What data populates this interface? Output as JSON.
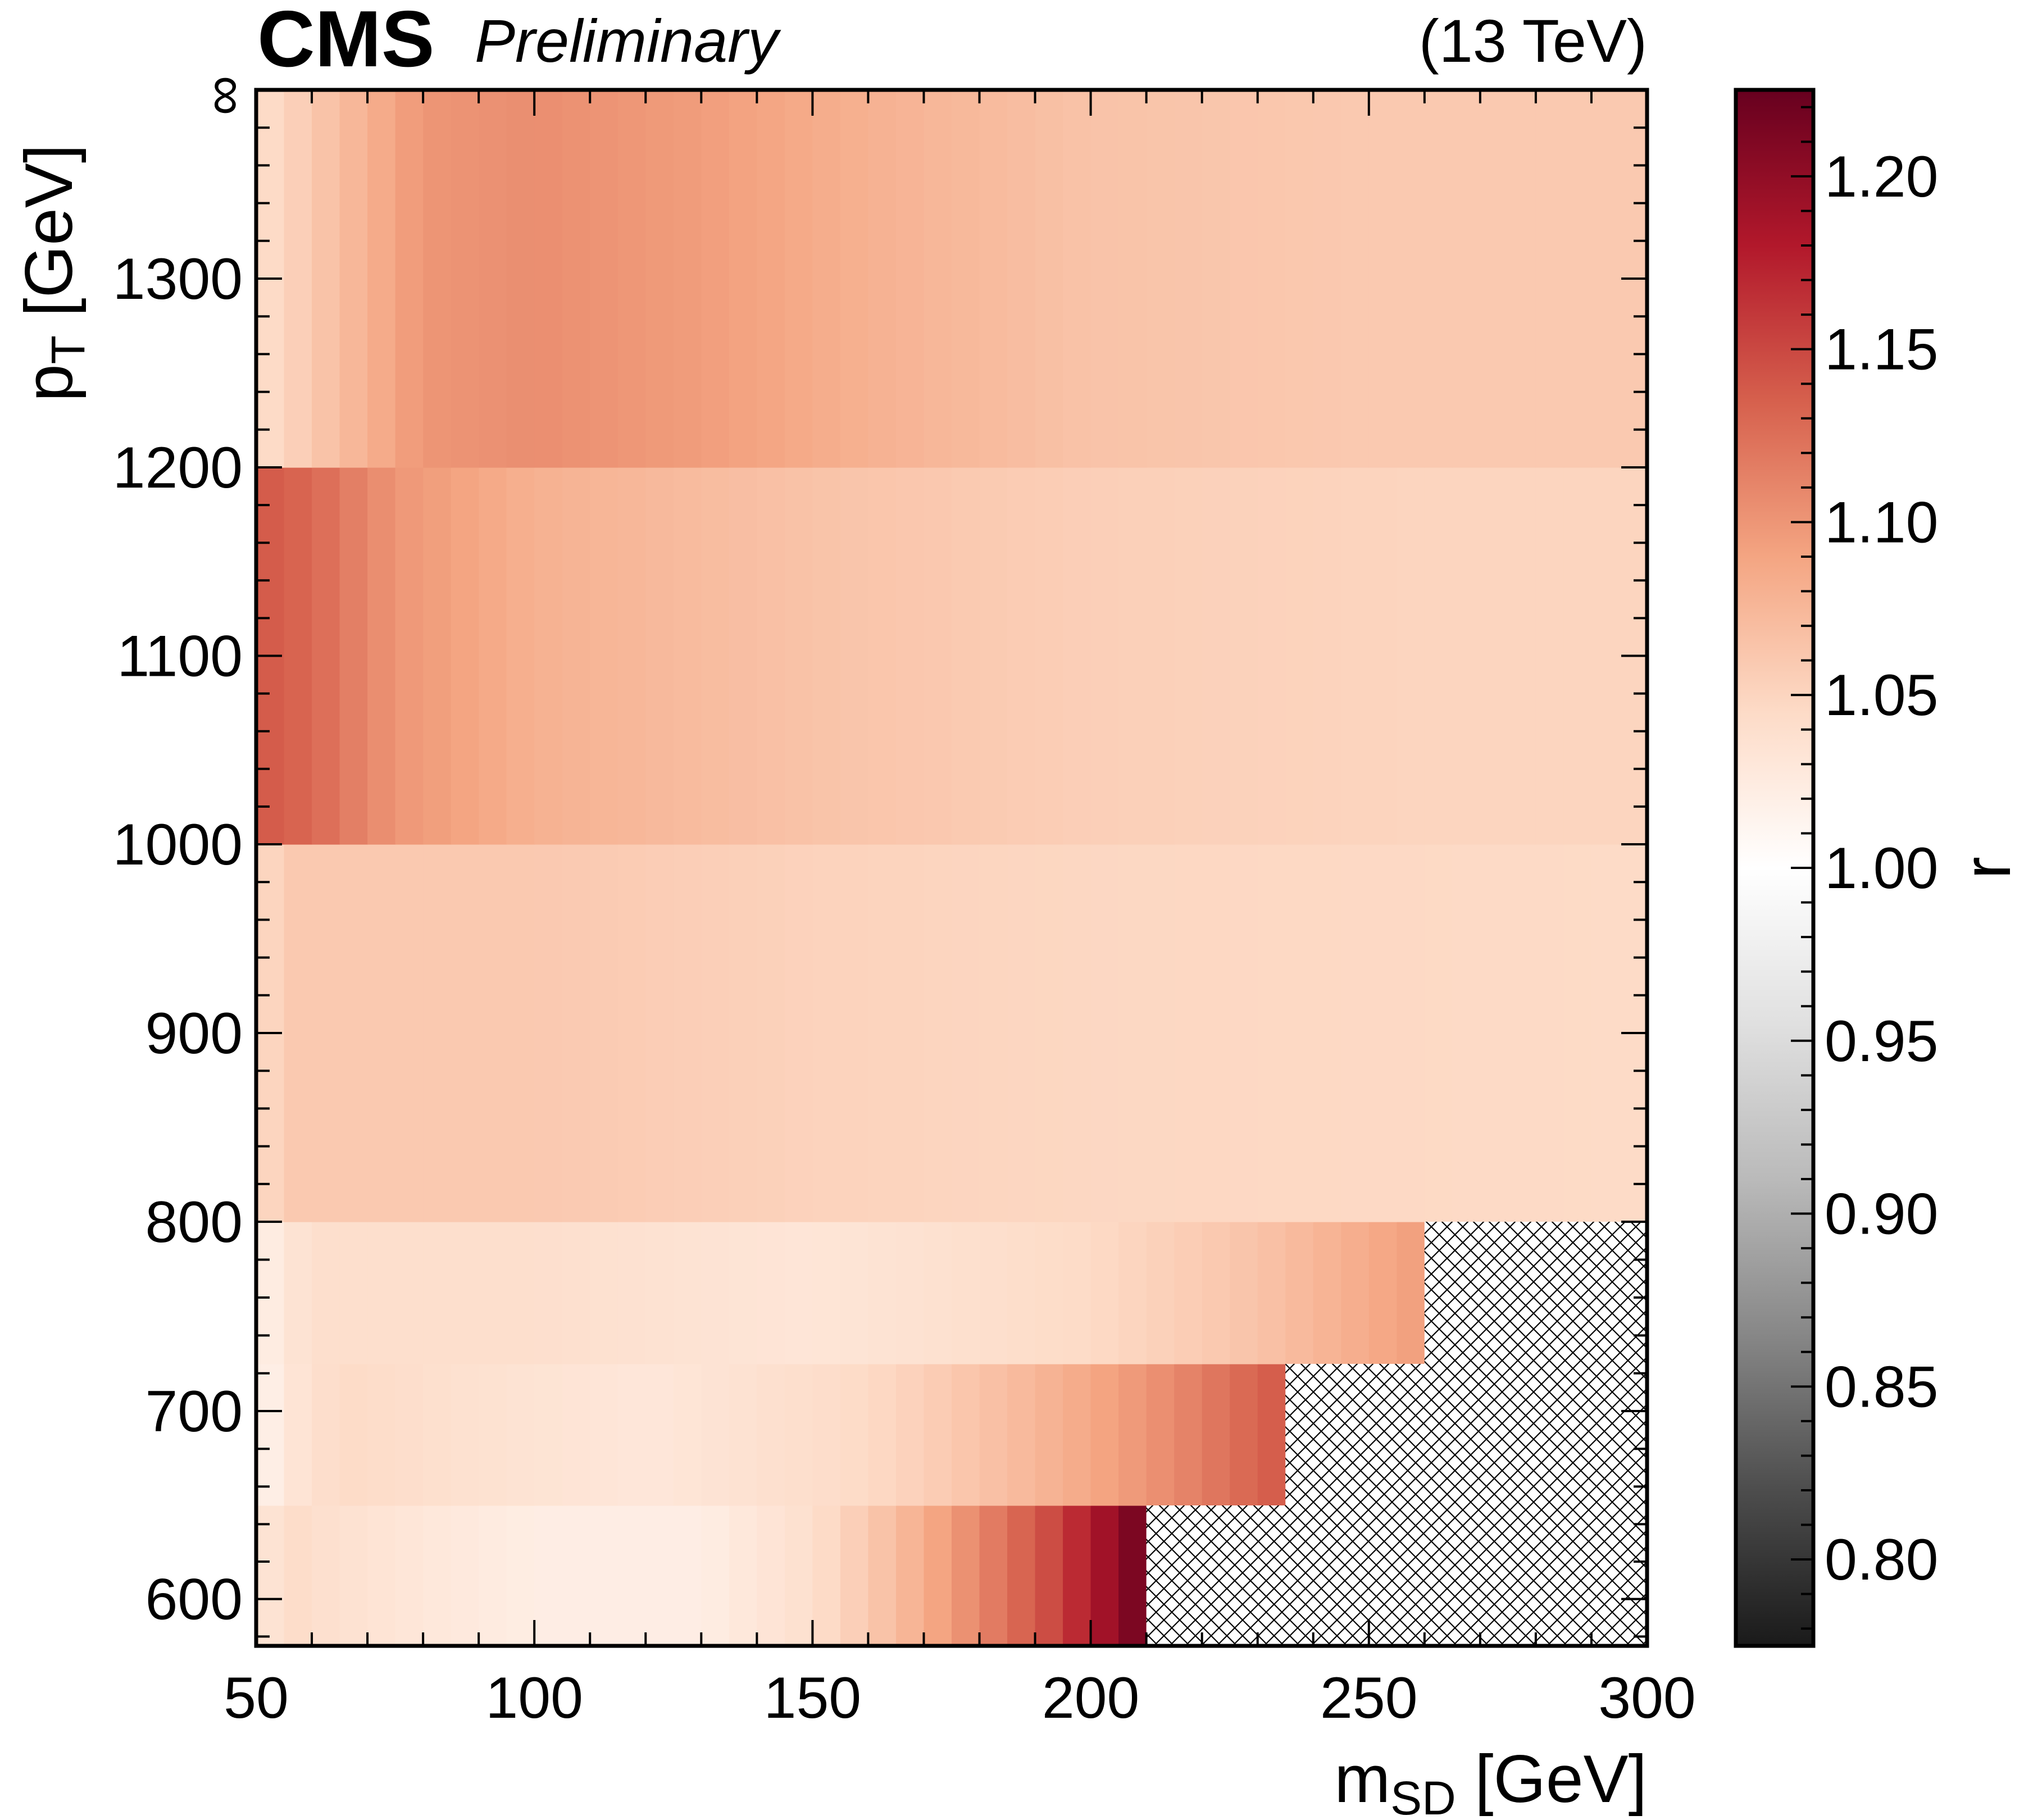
{
  "header": {
    "experiment": "CMS",
    "status": "Preliminary",
    "energy": "(13 TeV)"
  },
  "colors": {
    "low": "#1a1a1a",
    "mid": "#ffffff",
    "high": "#67001f",
    "hatch": "#000000"
  },
  "chart_data": {
    "type": "heatmap",
    "title": "",
    "xlabel": {
      "main": "m",
      "sub": "SD",
      "unit": " [GeV]"
    },
    "ylabel": {
      "main": "p",
      "sub": "T",
      "unit": " [GeV]"
    },
    "colorbar_label": "r",
    "xlim": [
      50,
      300
    ],
    "y_bin_edges": [
      575,
      650,
      725,
      800,
      1000,
      1200,
      1400
    ],
    "y_top_label": "∞",
    "x_ticks": [
      "50",
      "100",
      "150",
      "200",
      "250",
      "300"
    ],
    "x_tick_values": [
      50,
      100,
      150,
      200,
      250,
      300
    ],
    "y_ticks": [
      "600",
      "700",
      "800",
      "900",
      "1000",
      "1100",
      "1200",
      "1300"
    ],
    "y_tick_values": [
      600,
      700,
      800,
      900,
      1000,
      1100,
      1200,
      1300
    ],
    "colorbar_range": [
      0.775,
      1.225
    ],
    "colorbar_ticks": [
      "0.80",
      "0.85",
      "0.90",
      "0.95",
      "1.00",
      "1.05",
      "1.10",
      "1.15",
      "1.20"
    ],
    "colorbar_tick_values": [
      0.8,
      0.85,
      0.9,
      0.95,
      1.0,
      1.05,
      1.1,
      1.15,
      1.2
    ],
    "colormap": "RdGy_r",
    "hatched_region_note": "",
    "rows": [
      {
        "pt_range": [
          575,
          650
        ],
        "msd_max": 210,
        "points": [
          [
            50,
            1.025
          ],
          [
            55,
            1.045
          ],
          [
            60,
            1.04
          ],
          [
            80,
            1.03
          ],
          [
            100,
            1.022
          ],
          [
            130,
            1.022
          ],
          [
            150,
            1.04
          ],
          [
            165,
            1.07
          ],
          [
            180,
            1.11
          ],
          [
            192,
            1.145
          ],
          [
            200,
            1.18
          ],
          [
            206,
            1.205
          ],
          [
            210,
            1.225
          ]
        ]
      },
      {
        "pt_range": [
          650,
          725
        ],
        "msd_max": 235,
        "points": [
          [
            50,
            1.012
          ],
          [
            55,
            1.03
          ],
          [
            65,
            1.045
          ],
          [
            80,
            1.04
          ],
          [
            120,
            1.03
          ],
          [
            160,
            1.045
          ],
          [
            190,
            1.075
          ],
          [
            210,
            1.1
          ],
          [
            225,
            1.125
          ],
          [
            235,
            1.14
          ]
        ]
      },
      {
        "pt_range": [
          725,
          800
        ],
        "msd_max": 260,
        "points": [
          [
            50,
            1.018
          ],
          [
            55,
            1.03
          ],
          [
            60,
            1.04
          ],
          [
            100,
            1.04
          ],
          [
            150,
            1.032
          ],
          [
            200,
            1.045
          ],
          [
            230,
            1.065
          ],
          [
            260,
            1.095
          ]
        ]
      },
      {
        "pt_range": [
          800,
          1000
        ],
        "msd_max": 300,
        "points": [
          [
            50,
            1.04
          ],
          [
            55,
            1.06
          ],
          [
            100,
            1.06
          ],
          [
            150,
            1.052
          ],
          [
            200,
            1.048
          ],
          [
            300,
            1.045
          ]
        ]
      },
      {
        "pt_range": [
          1000,
          1200
        ],
        "msd_max": 300,
        "points": [
          [
            50,
            1.14
          ],
          [
            60,
            1.13
          ],
          [
            75,
            1.1
          ],
          [
            100,
            1.08
          ],
          [
            150,
            1.065
          ],
          [
            200,
            1.055
          ],
          [
            260,
            1.05
          ],
          [
            300,
            1.05
          ]
        ]
      },
      {
        "pt_range": [
          1200,
          1400
        ],
        "msd_max": 300,
        "points": [
          [
            50,
            1.04
          ],
          [
            55,
            1.05
          ],
          [
            65,
            1.07
          ],
          [
            80,
            1.1
          ],
          [
            100,
            1.105
          ],
          [
            130,
            1.095
          ],
          [
            160,
            1.08
          ],
          [
            200,
            1.065
          ],
          [
            250,
            1.06
          ],
          [
            300,
            1.06
          ]
        ]
      }
    ]
  }
}
